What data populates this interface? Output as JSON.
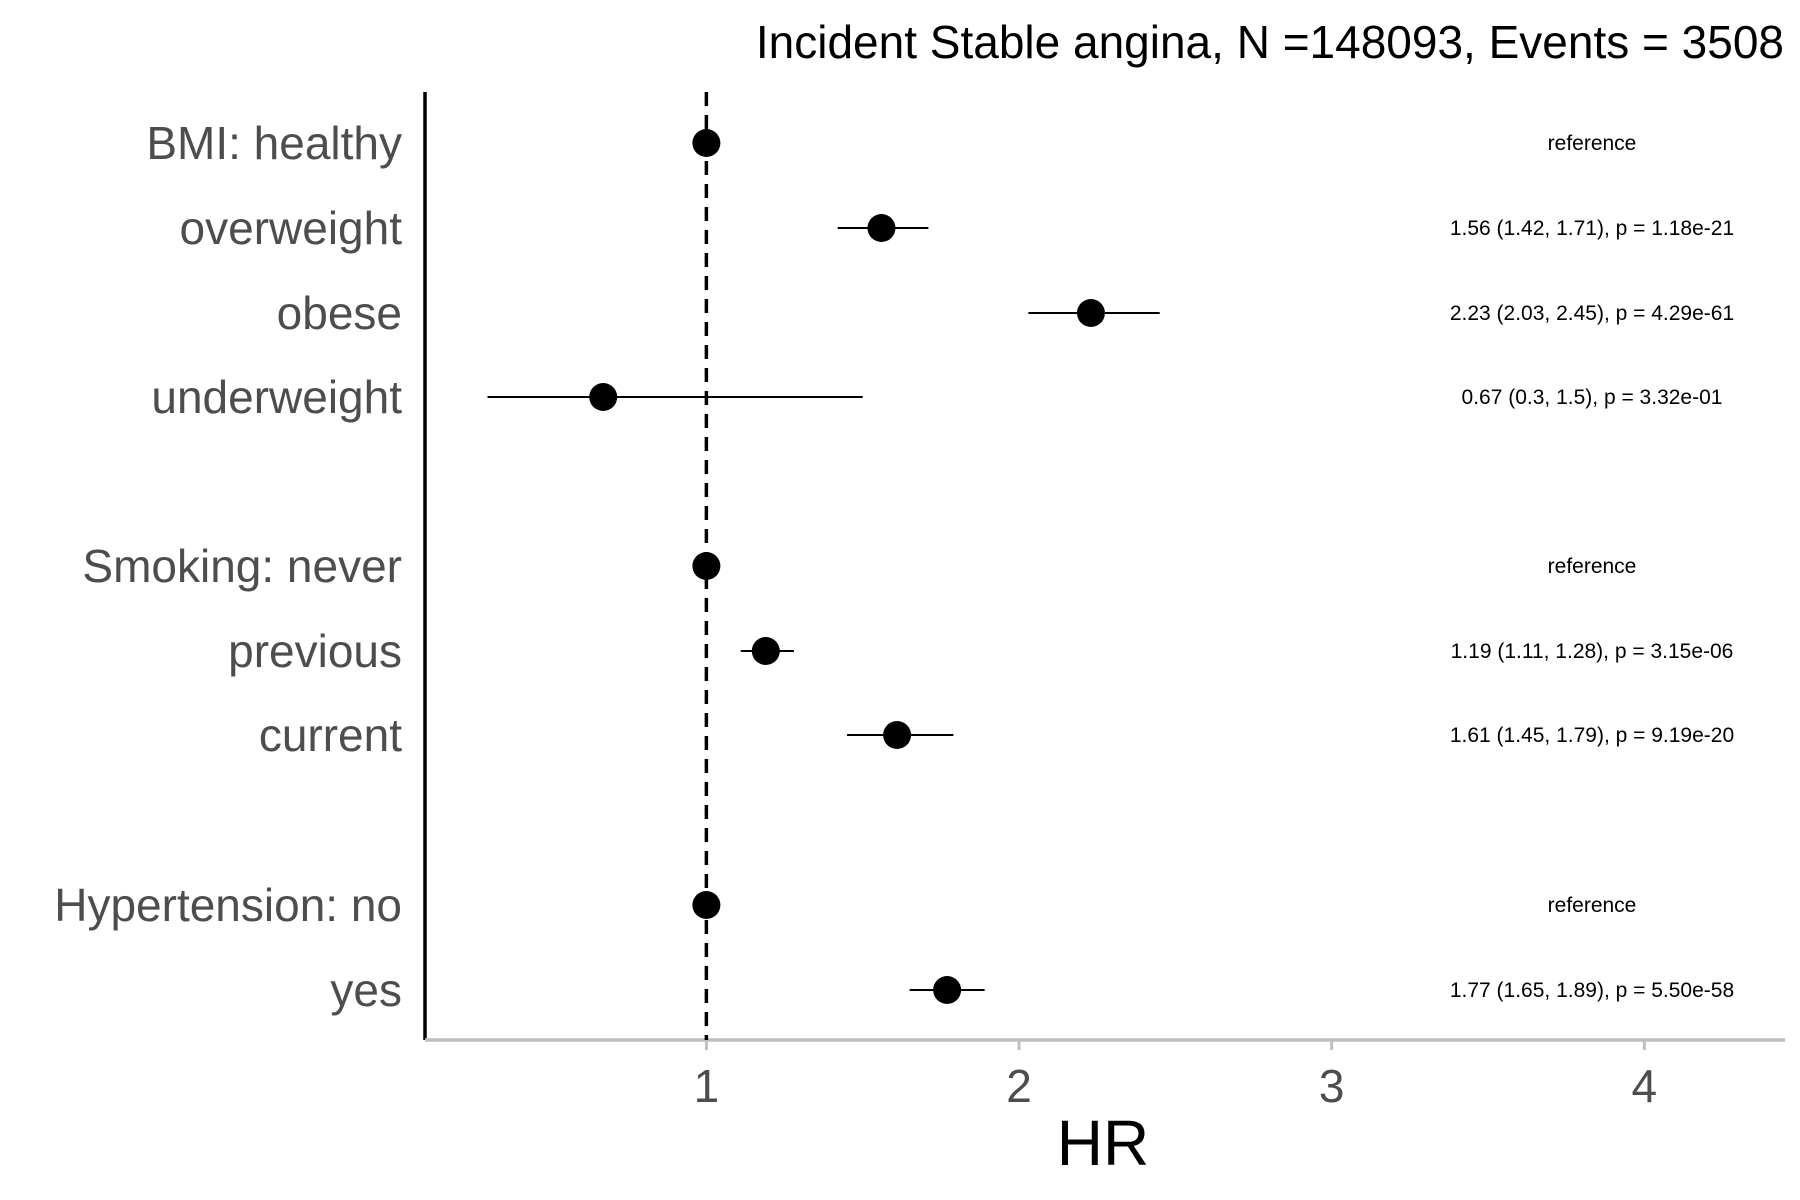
{
  "chart_data": {
    "type": "forest",
    "title": "Incident Stable angina, N =148093, Events = 3508",
    "xlabel": "HR",
    "xlim": [
      0.1,
      4.45
    ],
    "x_ticks": [
      1,
      2,
      3,
      4
    ],
    "x_tick_labels": [
      "1",
      "2",
      "3",
      "4"
    ],
    "reference_line": 1,
    "grid": false,
    "colors": {
      "point": "#000000",
      "errorbar": "#000000",
      "reference_line": "#000000",
      "y_axis_line": "#000000",
      "x_axis_line": "#bebebe",
      "label_text": "#4d4d4d"
    },
    "rows": [
      {
        "label": "BMI: healthy",
        "hr": 1.0,
        "lower": 1.0,
        "upper": 1.0,
        "annotation": "reference"
      },
      {
        "label": "overweight",
        "hr": 1.56,
        "lower": 1.42,
        "upper": 1.71,
        "annotation": "1.56 (1.42, 1.71), p = 1.18e-21"
      },
      {
        "label": "obese",
        "hr": 2.23,
        "lower": 2.03,
        "upper": 2.45,
        "annotation": "2.23 (2.03, 2.45), p = 4.29e-61"
      },
      {
        "label": "underweight",
        "hr": 0.67,
        "lower": 0.3,
        "upper": 1.5,
        "annotation": "0.67 (0.3, 1.5), p = 3.32e-01"
      },
      {
        "label": "Smoking: never",
        "hr": 1.0,
        "lower": 1.0,
        "upper": 1.0,
        "annotation": "reference"
      },
      {
        "label": "previous",
        "hr": 1.19,
        "lower": 1.11,
        "upper": 1.28,
        "annotation": "1.19 (1.11, 1.28), p = 3.15e-06"
      },
      {
        "label": "current",
        "hr": 1.61,
        "lower": 1.45,
        "upper": 1.79,
        "annotation": "1.61 (1.45, 1.79), p = 9.19e-20"
      },
      {
        "label": "Hypertension: no",
        "hr": 1.0,
        "lower": 1.0,
        "upper": 1.0,
        "annotation": "reference"
      },
      {
        "label": "yes",
        "hr": 1.77,
        "lower": 1.65,
        "upper": 1.89,
        "annotation": "1.77 (1.65, 1.89), p = 5.50e-58"
      }
    ]
  }
}
